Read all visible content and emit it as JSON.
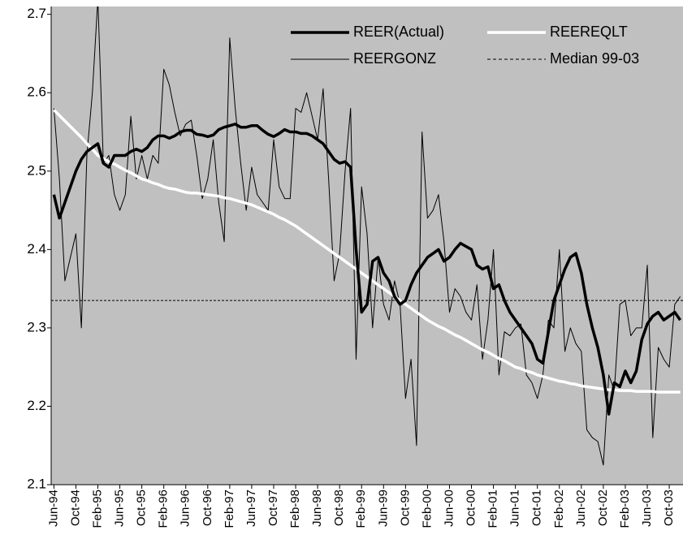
{
  "chart_data": {
    "type": "line",
    "categories": [
      "Jun-94",
      null,
      null,
      null,
      "Oct-94",
      null,
      null,
      null,
      "Feb-95",
      null,
      null,
      null,
      "Jun-95",
      null,
      null,
      null,
      "Oct-95",
      null,
      null,
      null,
      "Feb-96",
      null,
      null,
      null,
      "Jun-96",
      null,
      null,
      null,
      "Oct-96",
      null,
      null,
      null,
      "Feb-97",
      null,
      null,
      null,
      "Jun-97",
      null,
      null,
      null,
      "Oct-97",
      null,
      null,
      null,
      "Feb-98",
      null,
      null,
      null,
      "Jun-98",
      null,
      null,
      null,
      "Oct-98",
      null,
      null,
      null,
      "Feb-99",
      null,
      null,
      null,
      "Jun-99",
      null,
      null,
      null,
      "Oct-99",
      null,
      null,
      null,
      "Feb-00",
      null,
      null,
      null,
      "Jun-00",
      null,
      null,
      null,
      "Oct-00",
      null,
      null,
      null,
      "Feb-01",
      null,
      null,
      null,
      "Jun-01",
      null,
      null,
      null,
      "Oct-01",
      null,
      null,
      null,
      "Feb-02",
      null,
      null,
      null,
      "Jun-02",
      null,
      null,
      null,
      "Oct-02",
      null,
      null,
      null,
      "Feb-03",
      null,
      null,
      null,
      "Jun-03",
      null,
      null,
      null,
      "Oct-03",
      null,
      null
    ],
    "series": [
      {
        "name": "REER(Actual)",
        "color": "#000000",
        "width": 3.5,
        "values": [
          2.47,
          2.44,
          2.46,
          2.48,
          2.5,
          2.515,
          2.525,
          2.53,
          2.535,
          2.51,
          2.505,
          2.52,
          2.52,
          2.52,
          2.525,
          2.528,
          2.525,
          2.53,
          2.54,
          2.545,
          2.545,
          2.542,
          2.545,
          2.55,
          2.552,
          2.552,
          2.547,
          2.546,
          2.544,
          2.546,
          2.553,
          2.556,
          2.558,
          2.56,
          2.556,
          2.556,
          2.558,
          2.558,
          2.552,
          2.547,
          2.544,
          2.548,
          2.553,
          2.55,
          2.55,
          2.548,
          2.548,
          2.545,
          2.54,
          2.535,
          2.525,
          2.515,
          2.51,
          2.512,
          2.505,
          2.4,
          2.32,
          2.33,
          2.385,
          2.39,
          2.37,
          2.36,
          2.34,
          2.33,
          2.335,
          2.355,
          2.37,
          2.38,
          2.39,
          2.395,
          2.4,
          2.385,
          2.39,
          2.4,
          2.408,
          2.404,
          2.4,
          2.38,
          2.375,
          2.378,
          2.35,
          2.355,
          2.335,
          2.32,
          2.31,
          2.3,
          2.29,
          2.28,
          2.26,
          2.255,
          2.295,
          2.335,
          2.355,
          2.375,
          2.39,
          2.395,
          2.37,
          2.33,
          2.3,
          2.275,
          2.24,
          2.19,
          2.23,
          2.225,
          2.245,
          2.23,
          2.245,
          2.285,
          2.305,
          2.315,
          2.32,
          2.31,
          2.315,
          2.32,
          2.31
        ]
      },
      {
        "name": "REEREQLT",
        "color": "#ffffff",
        "width": 3.5,
        "values": [
          2.578,
          2.571,
          2.564,
          2.557,
          2.55,
          2.543,
          2.535,
          2.528,
          2.52,
          2.516,
          2.512,
          2.509,
          2.505,
          2.501,
          2.498,
          2.494,
          2.49,
          2.488,
          2.485,
          2.483,
          2.48,
          2.478,
          2.477,
          2.475,
          2.473,
          2.472,
          2.472,
          2.471,
          2.47,
          2.469,
          2.468,
          2.466,
          2.465,
          2.463,
          2.461,
          2.459,
          2.457,
          2.454,
          2.451,
          2.448,
          2.445,
          2.441,
          2.438,
          2.434,
          2.43,
          2.425,
          2.42,
          2.415,
          2.41,
          2.405,
          2.4,
          2.395,
          2.39,
          2.385,
          2.38,
          2.375,
          2.37,
          2.365,
          2.36,
          2.355,
          2.35,
          2.345,
          2.34,
          2.335,
          2.33,
          2.325,
          2.32,
          2.315,
          2.31,
          2.306,
          2.302,
          2.299,
          2.295,
          2.291,
          2.288,
          2.284,
          2.28,
          2.276,
          2.272,
          2.269,
          2.265,
          2.261,
          2.258,
          2.254,
          2.25,
          2.248,
          2.245,
          2.243,
          2.24,
          2.238,
          2.236,
          2.234,
          2.232,
          2.231,
          2.229,
          2.228,
          2.226,
          2.225,
          2.224,
          2.223,
          2.222,
          2.221,
          2.221,
          2.22,
          2.22,
          2.22,
          2.219,
          2.219,
          2.219,
          2.219,
          2.218,
          2.218,
          2.218,
          2.218,
          2.218
        ]
      },
      {
        "name": "REERGONZ",
        "color": "#000000",
        "width": 1,
        "values": [
          2.58,
          2.49,
          2.36,
          2.39,
          2.42,
          2.3,
          2.52,
          2.6,
          2.72,
          2.51,
          2.52,
          2.47,
          2.45,
          2.47,
          2.57,
          2.49,
          2.52,
          2.49,
          2.52,
          2.51,
          2.63,
          2.61,
          2.575,
          2.545,
          2.56,
          2.565,
          2.52,
          2.465,
          2.49,
          2.54,
          2.46,
          2.41,
          2.67,
          2.58,
          2.51,
          2.45,
          2.505,
          2.47,
          2.46,
          2.45,
          2.54,
          2.48,
          2.465,
          2.465,
          2.58,
          2.575,
          2.6,
          2.57,
          2.54,
          2.605,
          2.49,
          2.36,
          2.395,
          2.5,
          2.58,
          2.26,
          2.48,
          2.42,
          2.3,
          2.39,
          2.33,
          2.31,
          2.36,
          2.33,
          2.21,
          2.26,
          2.15,
          2.55,
          2.44,
          2.45,
          2.47,
          2.41,
          2.32,
          2.35,
          2.34,
          2.32,
          2.31,
          2.355,
          2.26,
          2.31,
          2.4,
          2.24,
          2.295,
          2.29,
          2.3,
          2.305,
          2.24,
          2.23,
          2.21,
          2.24,
          2.31,
          2.3,
          2.4,
          2.27,
          2.3,
          2.28,
          2.27,
          2.17,
          2.16,
          2.155,
          2.125,
          2.24,
          2.22,
          2.33,
          2.335,
          2.29,
          2.3,
          2.3,
          2.38,
          2.16,
          2.275,
          2.26,
          2.25,
          2.33,
          2.34
        ]
      }
    ],
    "reference_lines": [
      {
        "name": "Median 99-03",
        "value": 2.335,
        "color": "#000000",
        "dashed": true
      }
    ],
    "ylim": [
      2.1,
      2.71
    ],
    "yticks": [
      2.1,
      2.2,
      2.3,
      2.4,
      2.5,
      2.6,
      2.7
    ],
    "plot_background": "#c0c0c0",
    "legend": "upper right"
  }
}
